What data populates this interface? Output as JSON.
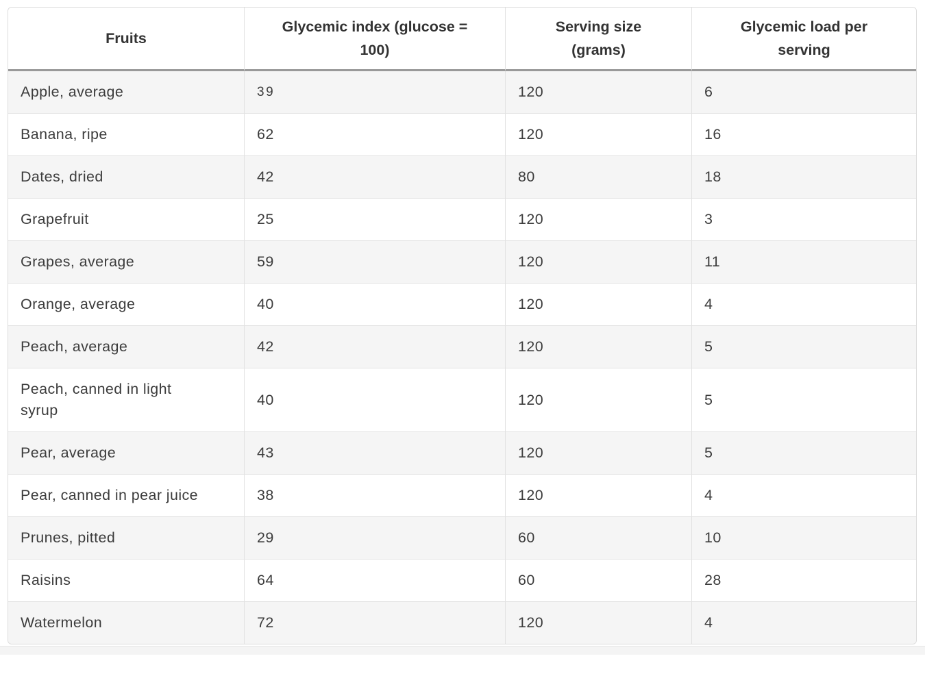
{
  "table": {
    "columns": [
      {
        "key": "fruit",
        "label": "Fruits"
      },
      {
        "key": "glycemic-index",
        "label": "Glycemic index (glucose = 100)"
      },
      {
        "key": "serving-size",
        "label": "Serving size (grams)"
      },
      {
        "key": "glycemic-load",
        "label": "Glycemic load per serving"
      }
    ],
    "rows": [
      [
        "Apple, average",
        "39",
        "120",
        "6"
      ],
      [
        "Banana, ripe",
        "62",
        "120",
        "16"
      ],
      [
        "Dates, dried",
        "42",
        "80",
        "18"
      ],
      [
        "Grapefruit",
        "25",
        "120",
        "3"
      ],
      [
        "Grapes, average",
        "59",
        "120",
        "11"
      ],
      [
        "Orange, average",
        "40",
        "120",
        "4"
      ],
      [
        "Peach, average",
        "42",
        "120",
        "5"
      ],
      [
        "Peach, canned in light syrup",
        "40",
        "120",
        "5"
      ],
      [
        "Pear, average",
        "43",
        "120",
        "5"
      ],
      [
        "Pear, canned in pear juice",
        "38",
        "120",
        "4"
      ],
      [
        "Prunes, pitted",
        "29",
        "60",
        "10"
      ],
      [
        "Raisins",
        "64",
        "60",
        "28"
      ],
      [
        "Watermelon",
        "72",
        "120",
        "4"
      ]
    ]
  },
  "colors": {
    "page_background": "#ffffff",
    "alt_row_background": "#f5f5f5",
    "grid_line": "#e2e2e2",
    "outer_border": "#dbdbdb",
    "header_rule": "#999999",
    "text": "#3c3c3c",
    "header_text": "#333333",
    "footer_strip": "#f4f4f4"
  }
}
